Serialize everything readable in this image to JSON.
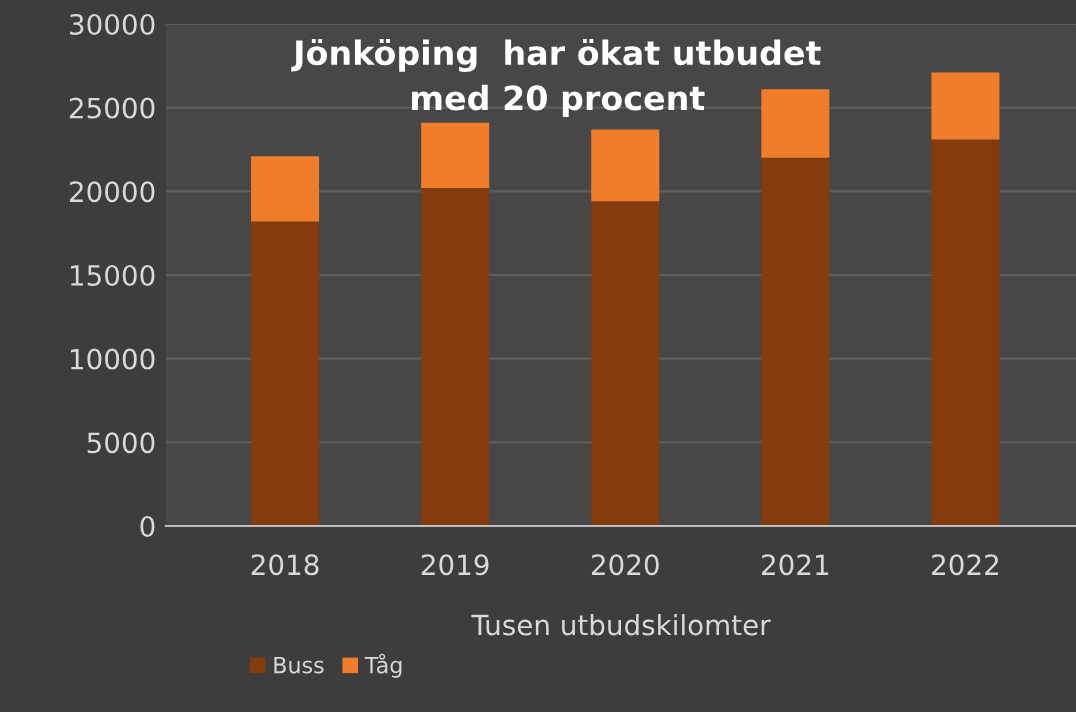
{
  "chart_data": {
    "type": "bar",
    "stacked": true,
    "title": "Jönköping  har ökat utbudet\nmed 20 procent",
    "xlabel": "Tusen utbudskilomter",
    "categories": [
      "2018",
      "2019",
      "2020",
      "2021",
      "2022"
    ],
    "series": [
      {
        "name": "Buss",
        "color": "#843c0c",
        "values": [
          18200,
          20200,
          19400,
          22000,
          23100
        ]
      },
      {
        "name": "Tåg",
        "color": "#f07d2a",
        "values": [
          3900,
          3900,
          4300,
          4100,
          4000
        ]
      }
    ],
    "ylim": [
      0,
      30000
    ],
    "yticks": [
      0,
      5000,
      10000,
      15000,
      20000,
      25000,
      30000
    ],
    "grid": "y",
    "legend": "bottom left"
  }
}
